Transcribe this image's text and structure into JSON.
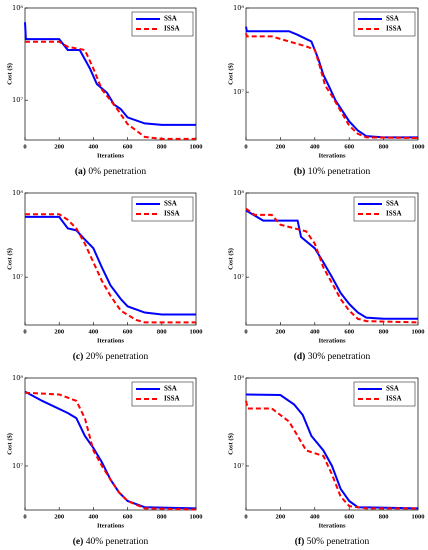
{
  "chart_data": [
    {
      "type": "line",
      "caption_label": "(a)",
      "caption": "0% penetration",
      "xlabel": "Iterations",
      "ylabel": "Cost ($)",
      "log_y": true,
      "legend": "upper right",
      "xlim": [
        0,
        1000
      ],
      "xticks": [
        0,
        200,
        400,
        600,
        800,
        1000
      ],
      "ylim": [
        3700000,
        100000000
      ],
      "yticks": [
        {
          "value": 10000000,
          "label": "10⁷"
        },
        {
          "value": 100000000,
          "label": "10⁸"
        }
      ],
      "series": [
        {
          "name": "SSA",
          "color": "#0000ff",
          "linestyle": "solid",
          "x": [
            0,
            5,
            200,
            250,
            320,
            380,
            420,
            480,
            520,
            560,
            600,
            700,
            800,
            1000
          ],
          "values": [
            70000000,
            46000000,
            46000000,
            35000000,
            35000000,
            22000000,
            15000000,
            12000000,
            9000000,
            8000000,
            6500000,
            5600000,
            5400000,
            5400000
          ]
        },
        {
          "name": "ISSA",
          "color": "#ff0000",
          "linestyle": "dashed",
          "x": [
            0,
            200,
            250,
            350,
            400,
            450,
            500,
            550,
            600,
            700,
            800,
            1000
          ],
          "values": [
            43000000,
            43000000,
            38000000,
            35000000,
            22000000,
            13000000,
            10000000,
            7500000,
            5500000,
            4000000,
            3800000,
            3800000
          ]
        }
      ]
    },
    {
      "type": "line",
      "caption_label": "(b)",
      "caption": "10% penetration",
      "xlabel": "Iterations",
      "ylabel": "Cost ($)",
      "log_y": true,
      "legend": "upper right",
      "xlim": [
        0,
        1000
      ],
      "xticks": [
        0,
        200,
        400,
        600,
        800,
        1000
      ],
      "ylim": [
        2700000,
        100000000
      ],
      "yticks": [
        {
          "value": 10000000,
          "label": "10⁷"
        },
        {
          "value": 100000000,
          "label": "10⁸"
        }
      ],
      "series": [
        {
          "name": "SSA",
          "color": "#0000ff",
          "linestyle": "solid",
          "x": [
            0,
            5,
            250,
            300,
            380,
            420,
            450,
            480,
            520,
            560,
            600,
            650,
            700,
            800,
            1000
          ],
          "values": [
            60000000,
            53000000,
            53000000,
            48000000,
            40000000,
            25000000,
            16000000,
            12000000,
            8000000,
            6000000,
            4500000,
            3500000,
            3000000,
            2900000,
            2900000
          ]
        },
        {
          "name": "ISSA",
          "color": "#ff0000",
          "linestyle": "dashed",
          "x": [
            0,
            5,
            150,
            250,
            350,
            400,
            430,
            460,
            500,
            550,
            600,
            650,
            700,
            1000
          ],
          "values": [
            50000000,
            46000000,
            46000000,
            40000000,
            35000000,
            32000000,
            20000000,
            12000000,
            9000000,
            6000000,
            4000000,
            3200000,
            2900000,
            2850000
          ]
        }
      ]
    },
    {
      "type": "line",
      "caption_label": "(c)",
      "caption": "20% penetration",
      "xlabel": "Iterations",
      "ylabel": "Cost ($)",
      "log_y": true,
      "legend": "upper right",
      "xlim": [
        0,
        1000
      ],
      "xticks": [
        0,
        200,
        400,
        600,
        800,
        1000
      ],
      "ylim": [
        2700000,
        100000000
      ],
      "yticks": [
        {
          "value": 10000000,
          "label": "10⁷"
        },
        {
          "value": 100000000,
          "label": "10⁸"
        }
      ],
      "series": [
        {
          "name": "SSA",
          "color": "#0000ff",
          "linestyle": "solid",
          "x": [
            0,
            200,
            250,
            300,
            350,
            400,
            450,
            500,
            560,
            600,
            700,
            800,
            1000
          ],
          "values": [
            52000000,
            52000000,
            38000000,
            36000000,
            28000000,
            22000000,
            13000000,
            8000000,
            5500000,
            4500000,
            3800000,
            3600000,
            3600000
          ]
        },
        {
          "name": "ISSA",
          "color": "#ff0000",
          "linestyle": "dashed",
          "x": [
            0,
            200,
            250,
            300,
            350,
            400,
            450,
            500,
            560,
            650,
            700,
            1000
          ],
          "values": [
            56000000,
            56000000,
            48000000,
            38000000,
            25000000,
            15000000,
            9000000,
            6000000,
            4000000,
            3100000,
            2900000,
            2900000
          ]
        }
      ]
    },
    {
      "type": "line",
      "caption_label": "(d)",
      "caption": "30% penetration",
      "xlabel": "Iterations",
      "ylabel": "Cost ($)",
      "log_y": true,
      "legend": "upper right",
      "xlim": [
        0,
        1000
      ],
      "xticks": [
        0,
        200,
        400,
        600,
        800,
        1000
      ],
      "ylim": [
        2700000,
        100000000
      ],
      "yticks": [
        {
          "value": 10000000,
          "label": "10⁷"
        },
        {
          "value": 100000000,
          "label": "10⁸"
        }
      ],
      "series": [
        {
          "name": "SSA",
          "color": "#0000ff",
          "linestyle": "solid",
          "x": [
            0,
            100,
            300,
            320,
            400,
            450,
            500,
            550,
            600,
            650,
            700,
            800,
            1000
          ],
          "values": [
            62000000,
            47000000,
            47000000,
            30000000,
            22000000,
            15000000,
            10000000,
            6500000,
            4800000,
            3800000,
            3300000,
            3200000,
            3200000
          ]
        },
        {
          "name": "ISSA",
          "color": "#ff0000",
          "linestyle": "dashed",
          "x": [
            0,
            50,
            150,
            200,
            350,
            400,
            450,
            500,
            550,
            600,
            650,
            700,
            1000
          ],
          "values": [
            65000000,
            55000000,
            55000000,
            42000000,
            35000000,
            25000000,
            13000000,
            8500000,
            5500000,
            4000000,
            3200000,
            3000000,
            2900000
          ]
        }
      ]
    },
    {
      "type": "line",
      "caption_label": "(e)",
      "caption": "40% penetration",
      "xlabel": "Iterations",
      "ylabel": "Cost ($)",
      "log_y": true,
      "legend": "upper right",
      "xlim": [
        0,
        1000
      ],
      "xticks": [
        0,
        200,
        400,
        600,
        800,
        1000
      ],
      "ylim": [
        3160000,
        100000000
      ],
      "yticks": [
        {
          "value": 10000000,
          "label": "10⁷"
        },
        {
          "value": 100000000,
          "label": "10⁸"
        }
      ],
      "series": [
        {
          "name": "SSA",
          "color": "#0000ff",
          "linestyle": "solid",
          "x": [
            0,
            100,
            250,
            300,
            350,
            400,
            450,
            500,
            550,
            600,
            700,
            1000
          ],
          "values": [
            70000000,
            55000000,
            40000000,
            35000000,
            22000000,
            16000000,
            11000000,
            7000000,
            5000000,
            4000000,
            3400000,
            3300000
          ]
        },
        {
          "name": "ISSA",
          "color": "#ff0000",
          "linestyle": "dashed",
          "x": [
            0,
            200,
            300,
            350,
            400,
            450,
            500,
            550,
            600,
            700,
            1000
          ],
          "values": [
            68000000,
            65000000,
            55000000,
            35000000,
            15000000,
            10000000,
            7000000,
            5000000,
            4000000,
            3300000,
            3200000
          ]
        }
      ]
    },
    {
      "type": "line",
      "caption_label": "(f)",
      "caption": "50% penetration",
      "xlabel": "Iterations",
      "ylabel": "Cost ($)",
      "log_y": true,
      "legend": "upper right",
      "xlim": [
        0,
        1000
      ],
      "xticks": [
        0,
        200,
        400,
        600,
        800,
        1000
      ],
      "ylim": [
        3160000,
        100000000
      ],
      "yticks": [
        {
          "value": 10000000,
          "label": "10⁷"
        },
        {
          "value": 100000000,
          "label": "10⁸"
        }
      ],
      "series": [
        {
          "name": "SSA",
          "color": "#0000ff",
          "linestyle": "solid",
          "x": [
            0,
            200,
            280,
            330,
            380,
            450,
            500,
            550,
            600,
            650,
            1000
          ],
          "values": [
            65000000,
            64000000,
            50000000,
            38000000,
            22000000,
            15000000,
            10000000,
            5500000,
            4000000,
            3400000,
            3300000
          ]
        },
        {
          "name": "ISSA",
          "color": "#ff0000",
          "linestyle": "dashed",
          "x": [
            0,
            10,
            150,
            250,
            300,
            350,
            450,
            500,
            550,
            600,
            700,
            1000
          ],
          "values": [
            55000000,
            45000000,
            45000000,
            32000000,
            22000000,
            15000000,
            13000000,
            8000000,
            4500000,
            3500000,
            3300000,
            3300000
          ]
        }
      ]
    }
  ]
}
